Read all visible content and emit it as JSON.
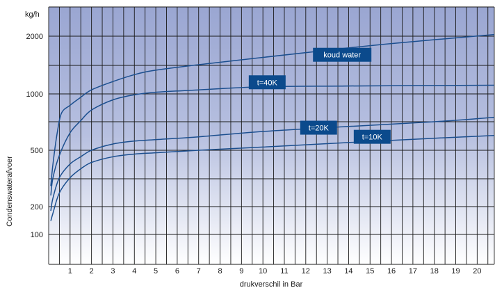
{
  "chart_data": {
    "type": "line",
    "y_unit": "kg/h",
    "xlabel": "drukverschil in Bar",
    "ylabel": "Condenswaterafvoer",
    "xlim": [
      0,
      20.8
    ],
    "y_ticks": [
      100,
      200,
      500,
      1000,
      2000
    ],
    "x_ticks": [
      1,
      2,
      3,
      4,
      5,
      6,
      7,
      8,
      9,
      10,
      11,
      12,
      13,
      14,
      15,
      16,
      17,
      18,
      19,
      20
    ],
    "grid": true,
    "colors": {
      "line": "#1c4f8f",
      "label_bg": "#0b4a8c",
      "band_top": "#9aa6d2",
      "band_bottom": "#ffffff"
    },
    "series": [
      {
        "name": "koud water",
        "x": [
          0.1,
          0.2,
          0.4,
          0.6,
          1,
          1.5,
          2,
          3,
          4,
          5,
          7,
          10,
          13,
          16,
          20.8
        ],
        "y": [
          280,
          400,
          620,
          790,
          870,
          960,
          1050,
          1160,
          1260,
          1330,
          1420,
          1550,
          1690,
          1830,
          2030
        ]
      },
      {
        "name": "t=40K",
        "x": [
          0.1,
          0.2,
          0.5,
          1,
          1.5,
          2,
          3,
          4,
          5,
          7,
          10,
          14,
          20.8
        ],
        "y": [
          240,
          320,
          460,
          620,
          720,
          820,
          930,
          990,
          1020,
          1050,
          1090,
          1100,
          1110
        ]
      },
      {
        "name": "t=20K",
        "x": [
          0.1,
          0.2,
          0.5,
          1,
          1.5,
          2,
          3,
          4,
          5,
          7,
          10,
          14,
          18,
          20.8
        ],
        "y": [
          180,
          230,
          320,
          400,
          450,
          500,
          540,
          560,
          570,
          590,
          630,
          670,
          710,
          750
        ]
      },
      {
        "name": "t=10K",
        "x": [
          0.1,
          0.2,
          0.5,
          1,
          1.5,
          2,
          3,
          4,
          5,
          7,
          10,
          14,
          18,
          20.8
        ],
        "y": [
          140,
          170,
          250,
          320,
          370,
          410,
          450,
          470,
          480,
          500,
          520,
          550,
          580,
          600
        ]
      }
    ],
    "labels": [
      {
        "series": "koud water",
        "text": "koud water",
        "x": 13.7,
        "y": 1600
      },
      {
        "series": "t=40K",
        "text": "t=40K",
        "x": 10.2,
        "y": 1150
      },
      {
        "series": "t=20K",
        "text": "t=20K",
        "x": 12.6,
        "y": 660
      },
      {
        "series": "t=10K",
        "text": "t=10K",
        "x": 15.1,
        "y": 590
      }
    ]
  }
}
